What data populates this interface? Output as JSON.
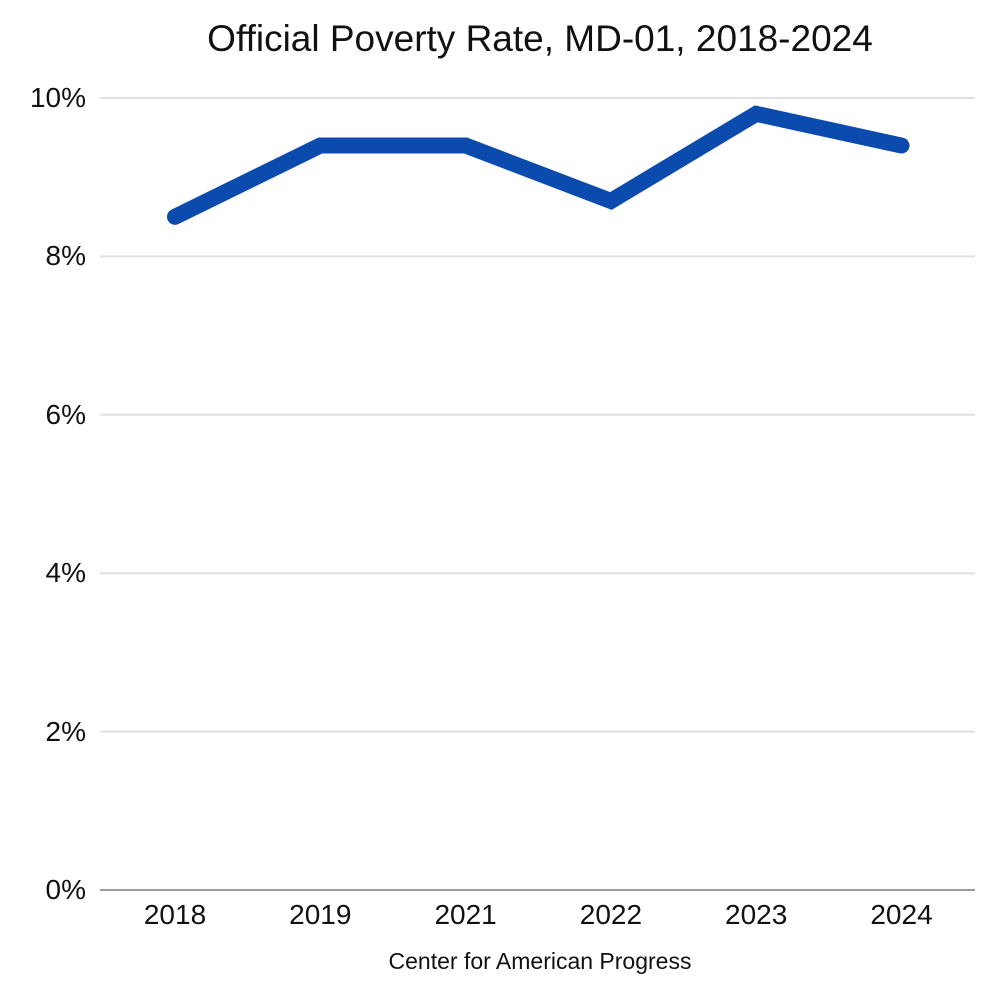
{
  "chart_data": {
    "type": "line",
    "title": "Official Poverty Rate, MD-01, 2018-2024",
    "source": "Center for American Progress",
    "categories": [
      "2018",
      "2019",
      "2021",
      "2022",
      "2023",
      "2024"
    ],
    "series": [
      {
        "name": "Official Poverty Rate",
        "values": [
          8.5,
          9.4,
          9.4,
          8.7,
          9.8,
          9.4
        ]
      }
    ],
    "unit": "%",
    "ylim": [
      0,
      10
    ],
    "ytick_step": 2,
    "ytick_labels": [
      "0%",
      "2%",
      "4%",
      "6%",
      "8%",
      "10%"
    ],
    "xlabel": "",
    "ylabel": "",
    "grid": "horizontal",
    "legend": "none",
    "line_color": "#0b4bad",
    "grid_color": "#e0e0e0",
    "axis_color": "#9b9b9b",
    "line_width": 16
  }
}
